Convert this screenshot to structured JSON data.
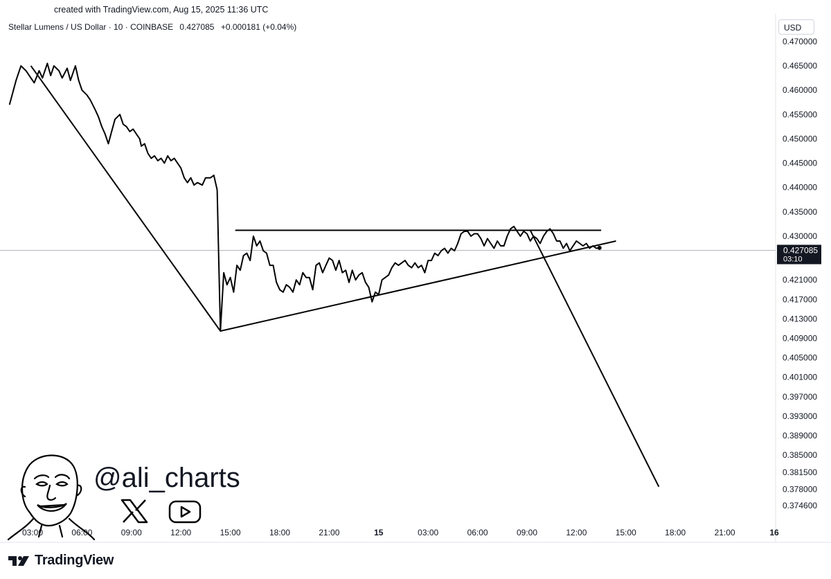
{
  "header": {
    "created_text": "created with TradingView.com, Aug 15, 2025 11:36 UTC",
    "symbol_name": "Stellar Lumens / US Dollar · 10 · COINBASE",
    "last_price": "0.427085",
    "change": "+0.000181 (+0.04%)",
    "currency": "USD"
  },
  "price_badge": {
    "price": "0.427085",
    "countdown": "03:10",
    "background": "#131722",
    "text_color": "#ffffff"
  },
  "watermark": {
    "handle": "@ali_charts",
    "icons": [
      "face-illustration-icon",
      "x-logo-icon",
      "youtube-logo-icon"
    ]
  },
  "brand": {
    "name": "TradingView",
    "icon": "tradingview-logo-icon"
  },
  "chart_data": {
    "type": "line",
    "ylabel": "",
    "xlabel": "",
    "ylim": [
      0.3725,
      0.4707
    ],
    "y_ticks": [
      "0.470000",
      "0.465000",
      "0.460000",
      "0.455000",
      "0.450000",
      "0.445000",
      "0.440000",
      "0.435000",
      "0.430000",
      "0.421000",
      "0.417000",
      "0.413000",
      "0.409000",
      "0.405000",
      "0.401000",
      "0.397000",
      "0.393000",
      "0.389000",
      "0.385000",
      "0.381500",
      "0.378000",
      "0.374600"
    ],
    "x_tick_labels": [
      "03:00",
      "06:00",
      "09:00",
      "12:00",
      "15:00",
      "18:00",
      "21:00",
      "15",
      "03:00",
      "06:00",
      "09:00",
      "12:00",
      "15:00",
      "18:00",
      "21:00",
      "16"
    ],
    "x_ticks_hours": [
      3,
      6,
      9,
      12,
      15,
      18,
      21,
      24,
      27,
      30,
      33,
      36,
      39,
      42,
      45,
      48
    ],
    "x_unit": "hours from Aug 14 00:00 UTC",
    "line_color": "#000000",
    "series": [
      {
        "name": "",
        "points": [
          [
            1.6,
            0.457
          ],
          [
            2.0,
            0.462
          ],
          [
            2.3,
            0.465
          ],
          [
            2.6,
            0.464
          ],
          [
            2.9,
            0.4625
          ],
          [
            3.1,
            0.4615
          ],
          [
            3.4,
            0.464
          ],
          [
            3.6,
            0.4625
          ],
          [
            3.9,
            0.4655
          ],
          [
            4.1,
            0.463
          ],
          [
            4.3,
            0.465
          ],
          [
            4.6,
            0.464
          ],
          [
            4.8,
            0.4625
          ],
          [
            5.1,
            0.4645
          ],
          [
            5.3,
            0.462
          ],
          [
            5.6,
            0.465
          ],
          [
            5.8,
            0.462
          ],
          [
            6.0,
            0.46
          ],
          [
            6.3,
            0.459
          ],
          [
            6.5,
            0.458
          ],
          [
            6.8,
            0.456
          ],
          [
            7.0,
            0.4545
          ],
          [
            7.2,
            0.4525
          ],
          [
            7.4,
            0.451
          ],
          [
            7.6,
            0.449
          ],
          [
            7.8,
            0.4515
          ],
          [
            8.0,
            0.454
          ],
          [
            8.3,
            0.455
          ],
          [
            8.5,
            0.453
          ],
          [
            8.7,
            0.4525
          ],
          [
            8.9,
            0.4515
          ],
          [
            9.1,
            0.452
          ],
          [
            9.3,
            0.451
          ],
          [
            9.5,
            0.45
          ],
          [
            9.6,
            0.4485
          ],
          [
            9.8,
            0.449
          ],
          [
            10.0,
            0.447
          ],
          [
            10.2,
            0.446
          ],
          [
            10.4,
            0.4465
          ],
          [
            10.6,
            0.4455
          ],
          [
            10.8,
            0.446
          ],
          [
            11.0,
            0.445
          ],
          [
            11.2,
            0.4465
          ],
          [
            11.4,
            0.4455
          ],
          [
            11.6,
            0.446
          ],
          [
            11.8,
            0.445
          ],
          [
            12.0,
            0.444
          ],
          [
            12.2,
            0.442
          ],
          [
            12.4,
            0.441
          ],
          [
            12.6,
            0.442
          ],
          [
            12.8,
            0.4405
          ],
          [
            13.0,
            0.441
          ],
          [
            13.3,
            0.4405
          ],
          [
            13.5,
            0.442
          ],
          [
            13.8,
            0.442
          ],
          [
            14.0,
            0.4425
          ],
          [
            14.2,
            0.4395
          ],
          [
            14.3,
            0.425
          ],
          [
            14.4,
            0.4105
          ],
          [
            14.6,
            0.4225
          ],
          [
            14.8,
            0.42
          ],
          [
            15.0,
            0.4215
          ],
          [
            15.2,
            0.4185
          ],
          [
            15.4,
            0.424
          ],
          [
            15.6,
            0.423
          ],
          [
            15.8,
            0.426
          ],
          [
            16.0,
            0.4265
          ],
          [
            16.2,
            0.425
          ],
          [
            16.4,
            0.43
          ],
          [
            16.6,
            0.428
          ],
          [
            16.8,
            0.429
          ],
          [
            17.0,
            0.427
          ],
          [
            17.2,
            0.4265
          ],
          [
            17.4,
            0.424
          ],
          [
            17.6,
            0.424
          ],
          [
            17.8,
            0.4205
          ],
          [
            18.0,
            0.419
          ],
          [
            18.2,
            0.4185
          ],
          [
            18.4,
            0.42
          ],
          [
            18.6,
            0.4195
          ],
          [
            18.8,
            0.4185
          ],
          [
            19.0,
            0.421
          ],
          [
            19.2,
            0.42
          ],
          [
            19.4,
            0.4225
          ],
          [
            19.6,
            0.4215
          ],
          [
            19.8,
            0.4215
          ],
          [
            20.0,
            0.419
          ],
          [
            20.2,
            0.424
          ],
          [
            20.4,
            0.4245
          ],
          [
            20.6,
            0.4225
          ],
          [
            20.8,
            0.424
          ],
          [
            21.0,
            0.4255
          ],
          [
            21.2,
            0.425
          ],
          [
            21.4,
            0.423
          ],
          [
            21.6,
            0.425
          ],
          [
            21.8,
            0.4225
          ],
          [
            22.0,
            0.423
          ],
          [
            22.2,
            0.4205
          ],
          [
            22.4,
            0.423
          ],
          [
            22.6,
            0.421
          ],
          [
            22.8,
            0.422
          ],
          [
            23.0,
            0.4225
          ],
          [
            23.2,
            0.4205
          ],
          [
            23.4,
            0.4195
          ],
          [
            23.6,
            0.4165
          ],
          [
            23.8,
            0.4185
          ],
          [
            24.0,
            0.418
          ],
          [
            24.2,
            0.421
          ],
          [
            24.4,
            0.4215
          ],
          [
            24.6,
            0.422
          ],
          [
            24.8,
            0.4235
          ],
          [
            25.0,
            0.4245
          ],
          [
            25.2,
            0.424
          ],
          [
            25.4,
            0.4245
          ],
          [
            25.6,
            0.425
          ],
          [
            25.8,
            0.424
          ],
          [
            26.0,
            0.4235
          ],
          [
            26.2,
            0.4245
          ],
          [
            26.4,
            0.4235
          ],
          [
            26.6,
            0.424
          ],
          [
            26.8,
            0.4225
          ],
          [
            27.0,
            0.425
          ],
          [
            27.2,
            0.425
          ],
          [
            27.4,
            0.4265
          ],
          [
            27.6,
            0.426
          ],
          [
            27.8,
            0.427
          ],
          [
            28.0,
            0.4275
          ],
          [
            28.2,
            0.4265
          ],
          [
            28.4,
            0.4275
          ],
          [
            28.6,
            0.427
          ],
          [
            28.8,
            0.4285
          ],
          [
            29.0,
            0.4305
          ],
          [
            29.2,
            0.431
          ],
          [
            29.4,
            0.431
          ],
          [
            29.6,
            0.43
          ],
          [
            29.8,
            0.4305
          ],
          [
            30.0,
            0.4305
          ],
          [
            30.2,
            0.4295
          ],
          [
            30.4,
            0.428
          ],
          [
            30.6,
            0.4295
          ],
          [
            30.8,
            0.4285
          ],
          [
            31.0,
            0.4275
          ],
          [
            31.2,
            0.429
          ],
          [
            31.4,
            0.428
          ],
          [
            31.6,
            0.428
          ],
          [
            31.8,
            0.43
          ],
          [
            32.0,
            0.4315
          ],
          [
            32.2,
            0.432
          ],
          [
            32.4,
            0.431
          ],
          [
            32.6,
            0.43
          ],
          [
            32.8,
            0.431
          ],
          [
            33.0,
            0.4305
          ],
          [
            33.2,
            0.429
          ],
          [
            33.4,
            0.43
          ],
          [
            33.6,
            0.4295
          ],
          [
            33.8,
            0.4285
          ],
          [
            34.0,
            0.43
          ],
          [
            34.2,
            0.431
          ],
          [
            34.4,
            0.4315
          ],
          [
            34.6,
            0.4305
          ],
          [
            34.8,
            0.429
          ],
          [
            35.0,
            0.429
          ],
          [
            35.2,
            0.4275
          ],
          [
            35.4,
            0.4285
          ],
          [
            35.6,
            0.427
          ],
          [
            35.8,
            0.428
          ],
          [
            36.0,
            0.429
          ],
          [
            36.2,
            0.4285
          ],
          [
            36.4,
            0.428
          ],
          [
            36.6,
            0.4285
          ],
          [
            36.8,
            0.4275
          ],
          [
            37.0,
            0.428
          ],
          [
            37.2,
            0.4275
          ],
          [
            37.4,
            0.4276
          ]
        ]
      }
    ],
    "last_point_marker": [
      37.4,
      0.4276
    ],
    "annotations": [
      {
        "type": "trendline",
        "label": "downtrend",
        "points": [
          [
            2.9,
            0.465
          ],
          [
            14.4,
            0.4105
          ]
        ]
      },
      {
        "type": "trendline",
        "label": "support",
        "points": [
          [
            14.4,
            0.4105
          ],
          [
            38.4,
            0.429
          ]
        ]
      },
      {
        "type": "hline",
        "label": "resistance",
        "y": 0.4312,
        "x_range": [
          15.3,
          37.5
        ]
      },
      {
        "type": "trendline",
        "label": "projection",
        "points": [
          [
            33.2,
            0.4312
          ],
          [
            41.0,
            0.3785
          ]
        ]
      }
    ],
    "current_price_line": 0.427085,
    "grid": false,
    "legend": "none"
  }
}
